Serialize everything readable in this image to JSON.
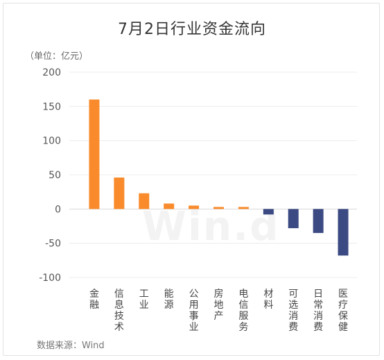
{
  "chart_data": {
    "type": "bar",
    "title": "7月2日行业资金流向",
    "unit_label": "（单位：亿元）",
    "source": "数据来源：Wind",
    "watermark": "Win.d",
    "categories": [
      "金融",
      "信息技术",
      "工业",
      "能源",
      "公用事业",
      "房地产",
      "电信服务",
      "材料",
      "可选消费",
      "日常消费",
      "医疗保健"
    ],
    "values": [
      160,
      46,
      23,
      8,
      5,
      3,
      3,
      -8,
      -28,
      -35,
      -68
    ],
    "ylim": [
      -100,
      200
    ],
    "yticks": [
      200,
      150,
      100,
      50,
      0,
      -50,
      -100
    ],
    "grid": true,
    "legend": "none",
    "colors": {
      "positive": "#F98B2C",
      "negative": "#3B4A82",
      "grid": "#ececec",
      "zero_line": "#d9d9d9"
    }
  }
}
